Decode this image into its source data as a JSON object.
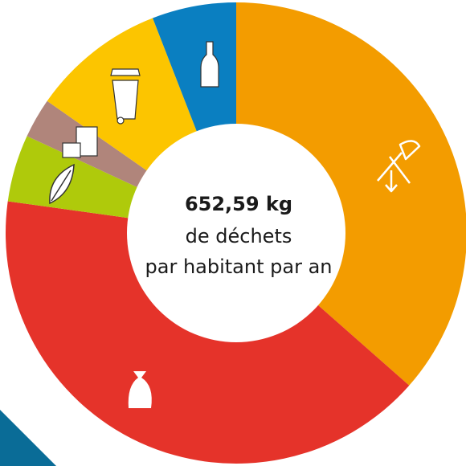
{
  "chart_data": {
    "type": "donut",
    "center_text": [
      "652,59 kg",
      "de déchets",
      "par habitant par an"
    ],
    "values": [
      36.5,
      40.7,
      4.7,
      2.8,
      9.4,
      5.9
    ],
    "colors": [
      "#f39c00",
      "#e5332a",
      "#afca0b",
      "#b0857b",
      "#fcc500",
      "#0a7fc1"
    ]
  }
}
